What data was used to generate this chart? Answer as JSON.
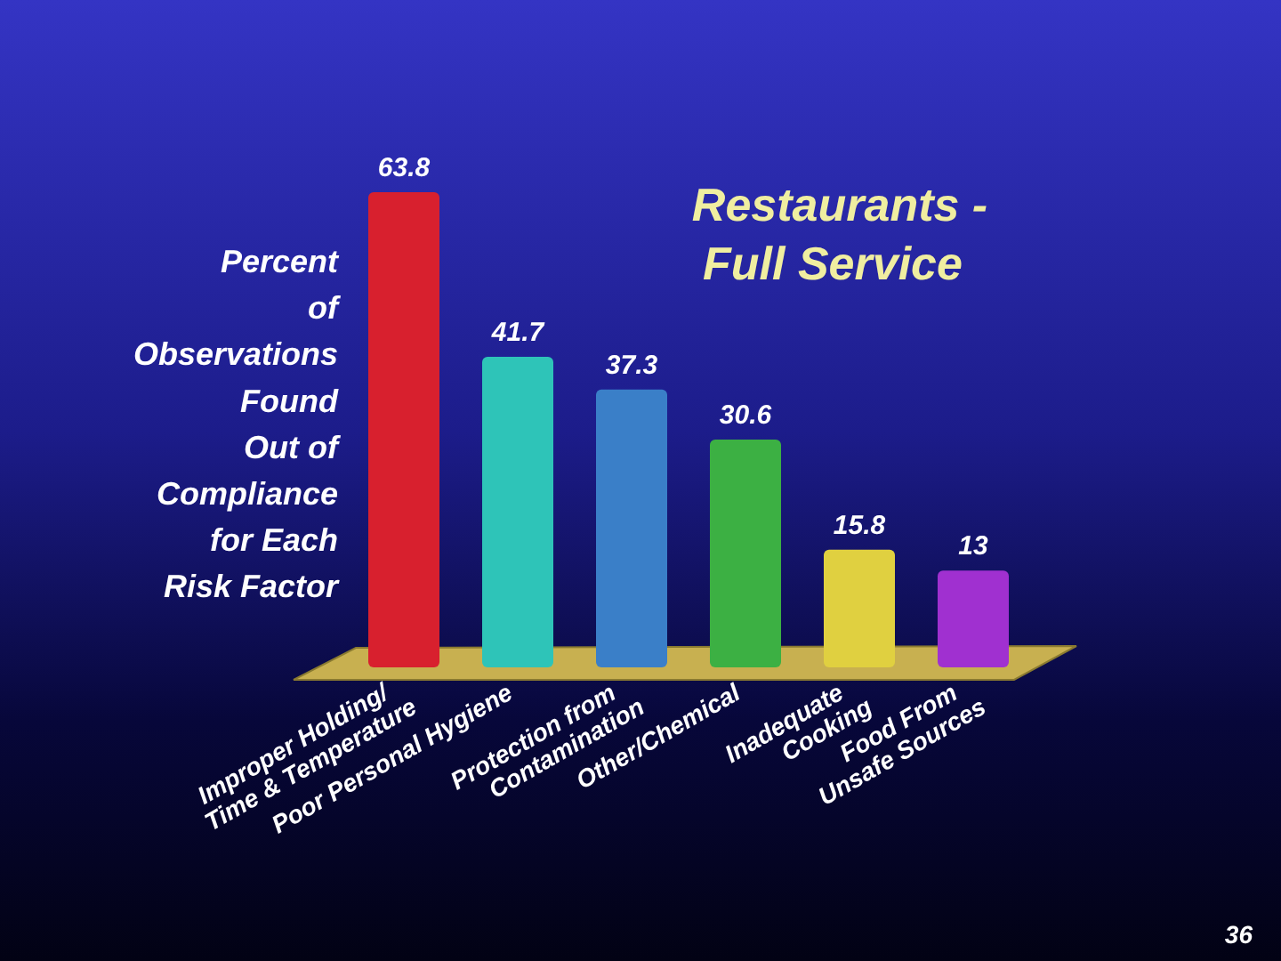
{
  "chart_data": {
    "type": "bar",
    "title": "Restaurants -\nFull Service",
    "ylabel": "Percent\nof\nObservations\nFound\nOut of\nCompliance\nfor Each\nRisk Factor",
    "categories": [
      "Improper Holding/\nTime & Temperature",
      "Poor Personal Hygiene",
      "Protection from\nContamination",
      "Other/Chemical",
      "Inadequate\nCooking",
      "Food From\nUnsafe Sources"
    ],
    "values": [
      63.8,
      41.7,
      37.3,
      30.6,
      15.8,
      13
    ],
    "colors": [
      "#d8202e",
      "#2ec4b8",
      "#3a7fc8",
      "#3cb043",
      "#e0d040",
      "#a030d0"
    ],
    "data_labels": true,
    "annotations": [
      "36"
    ]
  }
}
